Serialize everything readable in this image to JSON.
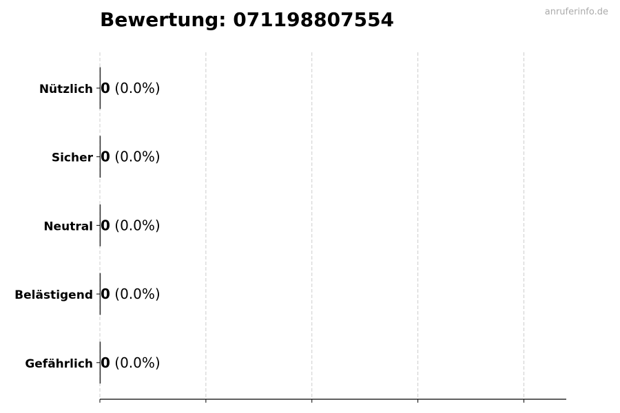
{
  "title": "Bewertung: 071198807554",
  "watermark": "anruferinfo.de",
  "chart_data": {
    "type": "bar",
    "orientation": "horizontal",
    "title": "Bewertung: 071198807554",
    "categories": [
      "Nützlich",
      "Sicher",
      "Neutral",
      "Belästigend",
      "Gefährlich"
    ],
    "values": [
      0,
      0,
      0,
      0,
      0
    ],
    "data_labels": [
      {
        "count": "0",
        "percent": "(0.0%)"
      },
      {
        "count": "0",
        "percent": "(0.0%)"
      },
      {
        "count": "0",
        "percent": "(0.0%)"
      },
      {
        "count": "0",
        "percent": "(0.0%)"
      },
      {
        "count": "0",
        "percent": "(0.0%)"
      }
    ],
    "xlabel": "",
    "ylabel": "",
    "x_ticks": [
      0,
      1,
      2,
      3,
      4
    ],
    "x_tick_labels_shown": false,
    "xlim": [
      0,
      4.4
    ],
    "grid": "vertical dashed",
    "legend": "none",
    "colors": {
      "bar_edge": "#333333",
      "grid": "#cccccc",
      "axis": "#000000"
    }
  }
}
